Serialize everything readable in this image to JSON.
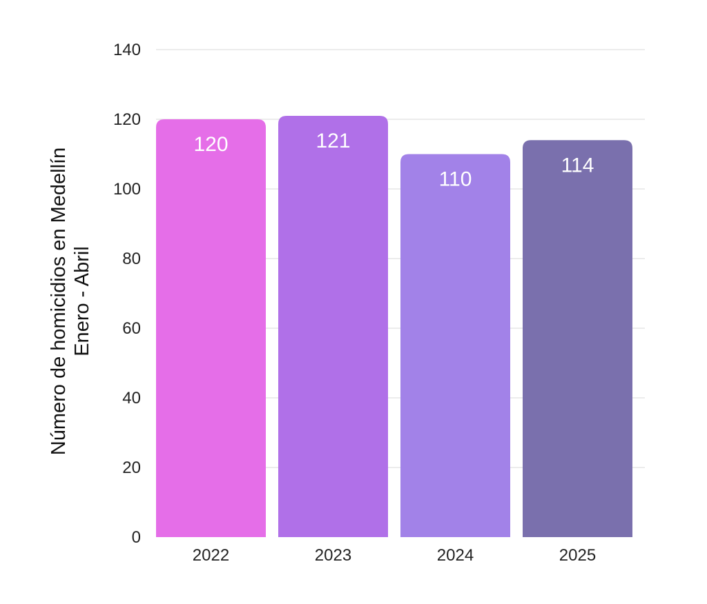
{
  "chart_data": {
    "type": "bar",
    "title": "",
    "xlabel": "",
    "ylabel_lines": [
      "Número de homicidios en Medellín",
      "Enero - Abril"
    ],
    "categories": [
      "2022",
      "2023",
      "2024",
      "2025"
    ],
    "values": [
      120,
      121,
      110,
      114
    ],
    "data_labels": [
      "120",
      "121",
      "110",
      "114"
    ],
    "ylim": [
      0,
      140
    ],
    "yticks": [
      0,
      20,
      40,
      60,
      80,
      100,
      120,
      140
    ],
    "ytick_labels": [
      "0",
      "20",
      "40",
      "60",
      "80",
      "100",
      "120",
      "140"
    ],
    "bar_colors": [
      "#e56ee8",
      "#b070e8",
      "#a282e8",
      "#7a70ad"
    ],
    "grid": true,
    "legend": "none"
  }
}
